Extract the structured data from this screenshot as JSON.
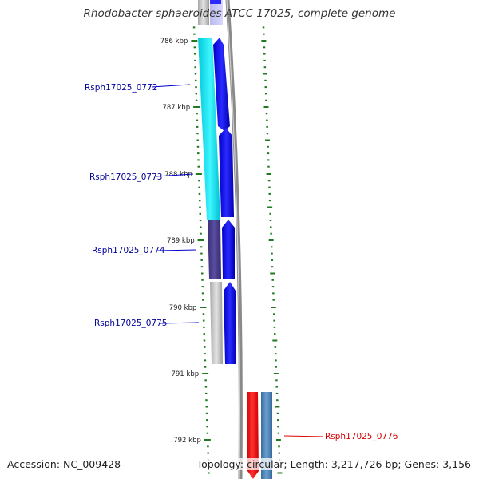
{
  "title": "Rhodobacter sphaeroides ATCC 17025, complete genome",
  "footer": {
    "accession": "Accession: NC_009428",
    "topology": "Topology: circular; Length: 3,217,726 bp; Genes: 3,156"
  },
  "ruler": {
    "labels": [
      "786 kbp",
      "787 kbp",
      "788 kbp",
      "789 kbp",
      "790 kbp",
      "791 kbp",
      "792 kbp"
    ]
  },
  "genes": [
    {
      "id": "Rsph17025_0772",
      "strand": "+",
      "color": "#1a1aff",
      "cog_color": "#00e5f0",
      "label_color": "#00009a"
    },
    {
      "id": "Rsph17025_0773",
      "strand": "+",
      "color": "#1a1aff",
      "cog_color": "#00e5f0",
      "label_color": "#00009a"
    },
    {
      "id": "Rsph17025_0774",
      "strand": "+",
      "color": "#1a1aff",
      "cog_color": "#4a3d8f",
      "label_color": "#00009a"
    },
    {
      "id": "Rsph17025_0775",
      "strand": "+",
      "color": "#1a1aff",
      "cog_color": "#c8c8c8",
      "label_color": "#00009a"
    },
    {
      "id": "Rsph17025_0776",
      "strand": "-",
      "color": "#ff0000",
      "cog_color": "#4a7fb5",
      "label_color": "#d40000"
    }
  ],
  "colors": {
    "backbone": "#8a8a8a",
    "tick": "#1f7a1f",
    "forward_strand": "#1a1aff",
    "reverse_strand": "#ff0000"
  }
}
